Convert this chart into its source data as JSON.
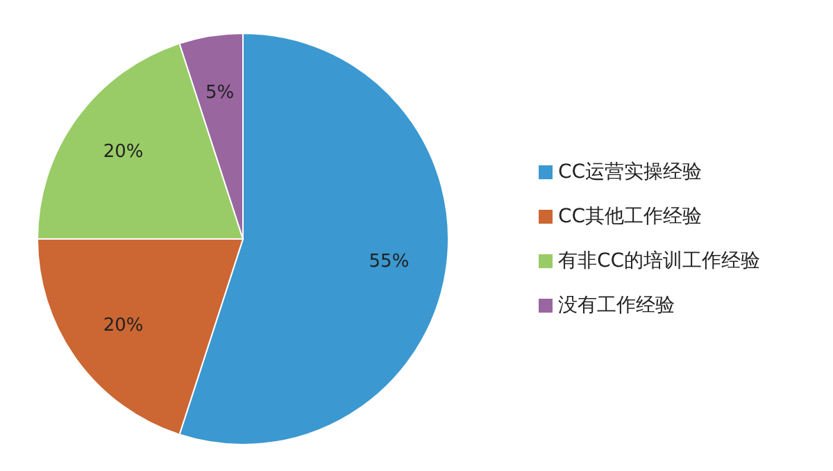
{
  "chart_data": {
    "type": "pie",
    "categories": [
      "CC运营实操经验",
      "CC其他工作经验",
      "有非CC的培训工作经验",
      "没有工作经验"
    ],
    "values": [
      55,
      20,
      20,
      5
    ],
    "colors": [
      "#3b98d0",
      "#cc6633",
      "#99cc66",
      "#9966a0"
    ],
    "value_labels": [
      "55%",
      "20%",
      "20%",
      "5%"
    ],
    "legend": "right"
  }
}
